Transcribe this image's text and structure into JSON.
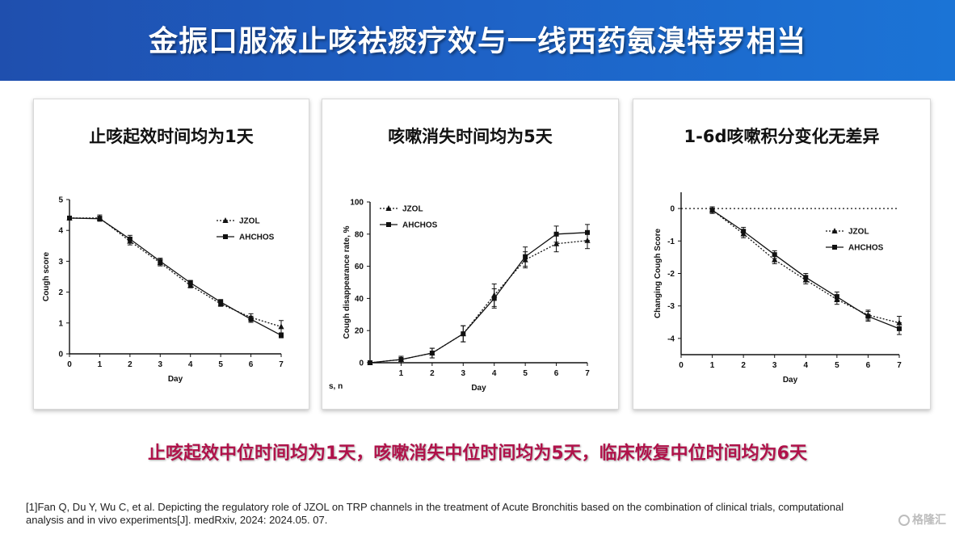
{
  "header": {
    "title": "金振口服液止咳祛痰疗效与一线西药氨溴特罗相当"
  },
  "summary": "止咳起效中位时间均为1天，咳嗽消失中位时间均为5天，临床恢复中位时间均为6天",
  "citation": "[1]Fan Q, Du Y, Wu C, et al. Depicting the regulatory role of JZOL on TRP channels in the treatment of Acute Bronchitis based on the combination of clinical trials, computational analysis and in vivo experiments[J]. medRxiv, 2024: 2024.05. 07.",
  "watermark": "格隆汇",
  "chart_data": [
    {
      "panel_title": "止咳起效时间均为1天",
      "type": "line",
      "xlabel": "Day",
      "ylabel": "Cough score",
      "xlim": [
        0,
        7
      ],
      "ylim": [
        0,
        5
      ],
      "x_ticks": [
        "0",
        "1",
        "2",
        "3",
        "4",
        "5",
        "6",
        "7"
      ],
      "y_ticks": [
        "0",
        "1",
        "2",
        "3",
        "4",
        "5"
      ],
      "legend_position": "top-right",
      "series": [
        {
          "name": "JZOL",
          "style": "dotted-triangle",
          "x": [
            0,
            1,
            2,
            3,
            4,
            5,
            6,
            7
          ],
          "y": [
            4.4,
            4.4,
            3.65,
            2.95,
            2.22,
            1.62,
            1.18,
            0.88
          ],
          "err": [
            0.06,
            0.1,
            0.12,
            0.1,
            0.08,
            0.08,
            0.12,
            0.2
          ]
        },
        {
          "name": "AHCHOS",
          "style": "solid-square",
          "x": [
            0,
            1,
            2,
            3,
            4,
            5,
            6,
            7
          ],
          "y": [
            4.4,
            4.38,
            3.72,
            3.0,
            2.3,
            1.68,
            1.12,
            0.6
          ],
          "err": [
            0.06,
            0.08,
            0.12,
            0.1,
            0.08,
            0.08,
            0.1,
            0.08
          ]
        }
      ]
    },
    {
      "panel_title": "咳嗽消失时间均为5天",
      "type": "line",
      "xlabel": "Day",
      "ylabel": "Cough disappearance rate, %",
      "corner_text": "s, n",
      "xlim": [
        0,
        7
      ],
      "ylim": [
        0,
        100
      ],
      "x_ticks": [
        "1",
        "2",
        "3",
        "4",
        "5",
        "6",
        "7"
      ],
      "y_ticks": [
        "0",
        "20",
        "40",
        "60",
        "80",
        "100"
      ],
      "legend_position": "top-left",
      "series": [
        {
          "name": "JZOL",
          "style": "dotted-triangle",
          "x": [
            0,
            1,
            2,
            3,
            4,
            5,
            6,
            7
          ],
          "y": [
            0,
            2,
            6,
            18,
            42,
            64,
            74,
            76
          ],
          "err": [
            0,
            2,
            3,
            5,
            7,
            5,
            5,
            5
          ]
        },
        {
          "name": "AHCHOS",
          "style": "solid-square",
          "x": [
            0,
            1,
            2,
            3,
            4,
            5,
            6,
            7
          ],
          "y": [
            0,
            2,
            6,
            18,
            40,
            66,
            80,
            81
          ],
          "err": [
            0,
            2,
            3,
            5,
            6,
            6,
            5,
            5
          ]
        }
      ]
    },
    {
      "panel_title": "1-6d咳嗽积分变化无差异",
      "type": "line",
      "xlabel": "Day",
      "ylabel": "Changing Cough Score",
      "xlim": [
        0,
        7
      ],
      "ylim": [
        -4.5,
        0.5
      ],
      "x_ticks": [
        "0",
        "1",
        "2",
        "3",
        "4",
        "5",
        "6",
        "7"
      ],
      "y_ticks": [
        "0",
        "-1",
        "-2",
        "-3",
        "-4"
      ],
      "reference_line_y": 0,
      "legend_position": "top-right",
      "series": [
        {
          "name": "JZOL",
          "style": "dotted-triangle",
          "x": [
            1,
            2,
            3,
            4,
            5,
            6,
            7
          ],
          "y": [
            -0.05,
            -0.78,
            -1.58,
            -2.2,
            -2.8,
            -3.28,
            -3.52
          ],
          "err": [
            0.1,
            0.12,
            0.12,
            0.12,
            0.15,
            0.15,
            0.2
          ]
        },
        {
          "name": "AHCHOS",
          "style": "solid-square",
          "x": [
            1,
            2,
            3,
            4,
            5,
            6,
            7
          ],
          "y": [
            -0.05,
            -0.7,
            -1.42,
            -2.12,
            -2.72,
            -3.32,
            -3.7
          ],
          "err": [
            0.1,
            0.12,
            0.12,
            0.12,
            0.15,
            0.15,
            0.18
          ]
        }
      ]
    }
  ]
}
